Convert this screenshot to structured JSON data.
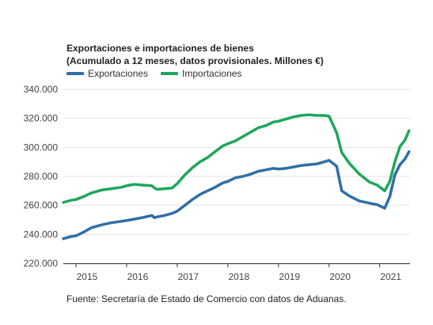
{
  "chart_data": {
    "type": "line",
    "title": "Exportaciones e importaciones de bienes",
    "subtitle": "(Acumulado a 12 meses, datos provisionales. Millones €)",
    "source": "Fuente: Secretaría de Estado de Comercio con datos de Aduanas.",
    "xlabel": "",
    "ylabel": "",
    "xlim": [
      2014.75,
      2021.6
    ],
    "ylim": [
      220000,
      340000
    ],
    "y_ticks": [
      220000,
      240000,
      260000,
      280000,
      300000,
      320000,
      340000
    ],
    "y_tick_labels": [
      "220.000",
      "240.000",
      "260.000",
      "280.000",
      "300.000",
      "320.000",
      "340.000"
    ],
    "x_ticks": [
      2015,
      2016,
      2017,
      2018,
      2019,
      2020,
      2021
    ],
    "x_tick_labels": [
      "2015",
      "2016",
      "2017",
      "2018",
      "2019",
      "2020",
      "2021"
    ],
    "grid": "horizontal",
    "legend_position": "top-left",
    "series": [
      {
        "name": "Exportaciones",
        "color": "#2f6fa7",
        "x": [
          2014.75,
          2014.9,
          2015.0,
          2015.15,
          2015.3,
          2015.5,
          2015.7,
          2015.9,
          2016.0,
          2016.15,
          2016.3,
          2016.5,
          2016.55,
          2016.6,
          2016.75,
          2016.9,
          2017.0,
          2017.15,
          2017.3,
          2017.45,
          2017.6,
          2017.75,
          2017.9,
          2018.0,
          2018.15,
          2018.3,
          2018.45,
          2018.6,
          2018.75,
          2018.9,
          2019.0,
          2019.15,
          2019.3,
          2019.45,
          2019.6,
          2019.75,
          2019.9,
          2020.0,
          2020.15,
          2020.25,
          2020.4,
          2020.6,
          2020.8,
          2020.95,
          2021.1,
          2021.2,
          2021.3,
          2021.4,
          2021.5,
          2021.58
        ],
        "values": [
          237000,
          238500,
          239000,
          241500,
          244500,
          246500,
          248000,
          249000,
          249500,
          250500,
          251500,
          253000,
          251500,
          252000,
          253000,
          254500,
          256000,
          260000,
          264000,
          267500,
          270000,
          272500,
          275500,
          276500,
          279000,
          280000,
          281500,
          283500,
          284500,
          285500,
          285000,
          285500,
          286500,
          287500,
          288000,
          288500,
          290000,
          291000,
          287000,
          270000,
          266500,
          263000,
          261500,
          260500,
          258000,
          266000,
          281000,
          288000,
          292000,
          297000
        ]
      },
      {
        "name": "Importaciones",
        "color": "#1ea75a",
        "x": [
          2014.75,
          2014.9,
          2015.0,
          2015.15,
          2015.3,
          2015.5,
          2015.7,
          2015.9,
          2016.0,
          2016.15,
          2016.3,
          2016.5,
          2016.55,
          2016.6,
          2016.75,
          2016.9,
          2017.0,
          2017.15,
          2017.3,
          2017.45,
          2017.6,
          2017.75,
          2017.9,
          2018.0,
          2018.15,
          2018.3,
          2018.45,
          2018.6,
          2018.75,
          2018.9,
          2019.0,
          2019.15,
          2019.3,
          2019.45,
          2019.6,
          2019.75,
          2019.9,
          2020.0,
          2020.15,
          2020.25,
          2020.4,
          2020.6,
          2020.8,
          2020.95,
          2021.1,
          2021.2,
          2021.3,
          2021.4,
          2021.5,
          2021.58
        ],
        "values": [
          262000,
          263500,
          264000,
          266000,
          268500,
          270500,
          271500,
          272500,
          273500,
          274500,
          274000,
          273500,
          272000,
          271000,
          271500,
          272000,
          275000,
          281000,
          286000,
          290000,
          293000,
          297000,
          301000,
          302500,
          304500,
          307500,
          310500,
          313500,
          315000,
          317500,
          318000,
          319500,
          321000,
          322000,
          322500,
          322000,
          322000,
          321500,
          310000,
          296500,
          289000,
          281500,
          276000,
          274000,
          270000,
          276500,
          290000,
          300500,
          305000,
          311500
        ]
      }
    ]
  }
}
